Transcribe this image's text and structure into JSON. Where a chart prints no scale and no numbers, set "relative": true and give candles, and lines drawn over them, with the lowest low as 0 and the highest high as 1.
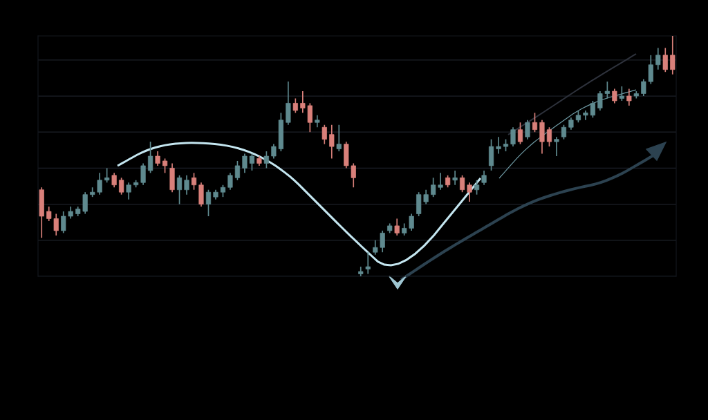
{
  "chart_data": {
    "type": "candlestick",
    "relative": true,
    "grid": "y",
    "categories": [
      null,
      null,
      null,
      null,
      null,
      null,
      null,
      null,
      null,
      null,
      null,
      null,
      null,
      null,
      null,
      null,
      null,
      null,
      null,
      null,
      null,
      null,
      null,
      null,
      null,
      null,
      null,
      null,
      null,
      null,
      null,
      null,
      null,
      null,
      null,
      null,
      null,
      null,
      null,
      null,
      null,
      null,
      null,
      null,
      null,
      null,
      null,
      null,
      null,
      null,
      null,
      null,
      null,
      null,
      null,
      null,
      null,
      null,
      null,
      null,
      null,
      null,
      null,
      null,
      null,
      null,
      null,
      null,
      null,
      null,
      null,
      null,
      null,
      null,
      null,
      null,
      null,
      null,
      null,
      null,
      null,
      null,
      null,
      null,
      null,
      null,
      null,
      null
    ],
    "ohlc": [
      [
        0.36,
        0.37,
        0.16,
        0.25
      ],
      [
        0.27,
        0.29,
        0.23,
        0.24
      ],
      [
        0.24,
        0.26,
        0.17,
        0.19
      ],
      [
        0.19,
        0.27,
        0.18,
        0.25
      ],
      [
        0.25,
        0.29,
        0.24,
        0.27
      ],
      [
        0.26,
        0.29,
        0.25,
        0.28
      ],
      [
        0.27,
        0.35,
        0.26,
        0.34
      ],
      [
        0.34,
        0.37,
        0.33,
        0.35
      ],
      [
        0.35,
        0.43,
        0.34,
        0.4
      ],
      [
        0.4,
        0.45,
        0.39,
        0.41
      ],
      [
        0.42,
        0.43,
        0.37,
        0.38
      ],
      [
        0.4,
        0.41,
        0.34,
        0.35
      ],
      [
        0.35,
        0.39,
        0.32,
        0.38
      ],
      [
        0.38,
        0.4,
        0.37,
        0.39
      ],
      [
        0.39,
        0.47,
        0.38,
        0.46
      ],
      [
        0.44,
        0.56,
        0.43,
        0.5
      ],
      [
        0.5,
        0.52,
        0.46,
        0.47
      ],
      [
        0.48,
        0.49,
        0.43,
        0.46
      ],
      [
        0.45,
        0.47,
        0.35,
        0.36
      ],
      [
        0.36,
        0.42,
        0.3,
        0.41
      ],
      [
        0.36,
        0.42,
        0.34,
        0.4
      ],
      [
        0.41,
        0.43,
        0.36,
        0.38
      ],
      [
        0.38,
        0.39,
        0.29,
        0.3
      ],
      [
        0.3,
        0.36,
        0.25,
        0.35
      ],
      [
        0.33,
        0.36,
        0.32,
        0.35
      ],
      [
        0.35,
        0.38,
        0.33,
        0.37
      ],
      [
        0.37,
        0.43,
        0.36,
        0.42
      ],
      [
        0.41,
        0.48,
        0.4,
        0.46
      ],
      [
        0.45,
        0.51,
        0.43,
        0.5
      ],
      [
        0.47,
        0.51,
        0.44,
        0.5
      ],
      [
        0.49,
        0.5,
        0.46,
        0.47
      ],
      [
        0.47,
        0.52,
        0.45,
        0.5
      ],
      [
        0.5,
        0.55,
        0.49,
        0.54
      ],
      [
        0.53,
        0.68,
        0.52,
        0.65
      ],
      [
        0.64,
        0.81,
        0.63,
        0.72
      ],
      [
        0.72,
        0.74,
        0.68,
        0.69
      ],
      [
        0.72,
        0.77,
        0.68,
        0.7
      ],
      [
        0.71,
        0.72,
        0.6,
        0.64
      ],
      [
        0.64,
        0.67,
        0.62,
        0.65
      ],
      [
        0.62,
        0.63,
        0.55,
        0.57
      ],
      [
        0.59,
        0.63,
        0.49,
        0.54
      ],
      [
        0.53,
        0.63,
        0.52,
        0.55
      ],
      [
        0.55,
        0.56,
        0.45,
        0.46
      ],
      [
        0.46,
        0.47,
        0.37,
        0.41
      ],
      [
        0.01,
        0.04,
        0,
        0.02
      ],
      [
        0.03,
        0.1,
        0.01,
        0.04
      ],
      [
        0.1,
        0.15,
        0.09,
        0.12
      ],
      [
        0.12,
        0.19,
        0.1,
        0.18
      ],
      [
        0.19,
        0.22,
        0.18,
        0.21
      ],
      [
        0.21,
        0.24,
        0.17,
        0.18
      ],
      [
        0.18,
        0.22,
        0.17,
        0.2
      ],
      [
        0.2,
        0.26,
        0.19,
        0.25
      ],
      [
        0.26,
        0.35,
        0.25,
        0.34
      ],
      [
        0.31,
        0.36,
        0.3,
        0.34
      ],
      [
        0.34,
        0.41,
        0.33,
        0.38
      ],
      [
        0.37,
        0.43,
        0.36,
        0.38
      ],
      [
        0.41,
        0.42,
        0.37,
        0.38
      ],
      [
        0.4,
        0.44,
        0.38,
        0.41
      ],
      [
        0.41,
        0.42,
        0.35,
        0.36
      ],
      [
        0.38,
        0.39,
        0.31,
        0.35
      ],
      [
        0.36,
        0.4,
        0.34,
        0.38
      ],
      [
        0.39,
        0.44,
        0.38,
        0.42
      ],
      [
        0.46,
        0.57,
        0.44,
        0.54
      ],
      [
        0.53,
        0.58,
        0.51,
        0.54
      ],
      [
        0.54,
        0.57,
        0.52,
        0.55
      ],
      [
        0.55,
        0.62,
        0.54,
        0.61
      ],
      [
        0.61,
        0.64,
        0.55,
        0.56
      ],
      [
        0.58,
        0.65,
        0.57,
        0.64
      ],
      [
        0.64,
        0.68,
        0.6,
        0.61
      ],
      [
        0.64,
        0.65,
        0.51,
        0.56
      ],
      [
        0.61,
        0.62,
        0.54,
        0.56
      ],
      [
        0.56,
        0.58,
        0.5,
        0.57
      ],
      [
        0.58,
        0.63,
        0.57,
        0.62
      ],
      [
        0.62,
        0.66,
        0.61,
        0.65
      ],
      [
        0.65,
        0.69,
        0.64,
        0.67
      ],
      [
        0.67,
        0.69,
        0.65,
        0.68
      ],
      [
        0.67,
        0.73,
        0.66,
        0.72
      ],
      [
        0.7,
        0.77,
        0.69,
        0.76
      ],
      [
        0.76,
        0.81,
        0.74,
        0.77
      ],
      [
        0.77,
        0.78,
        0.72,
        0.73
      ],
      [
        0.74,
        0.79,
        0.73,
        0.75
      ],
      [
        0.75,
        0.78,
        0.71,
        0.73
      ],
      [
        0.75,
        0.77,
        0.74,
        0.76
      ],
      [
        0.76,
        0.82,
        0.75,
        0.81
      ],
      [
        0.81,
        0.92,
        0.8,
        0.88
      ],
      [
        0.88,
        0.95,
        0.86,
        0.92
      ],
      [
        0.92,
        0.95,
        0.85,
        0.86
      ],
      [
        0.92,
        1,
        0.84,
        0.86
      ]
    ],
    "colors": [
      "#d9807a",
      "#d9807a",
      "#d9807a",
      "#5f8a8f",
      "#5f8a8f",
      "#5f8a8f",
      "#5f8a8f",
      "#5f8a8f",
      "#5f8a8f",
      "#5f8a8f",
      "#d9807a",
      "#d9807a",
      "#5f8a8f",
      "#5f8a8f",
      "#5f8a8f",
      "#5f8a8f",
      "#d9807a",
      "#d9807a",
      "#d9807a",
      "#5f8a8f",
      "#5f8a8f",
      "#d9807a",
      "#d9807a",
      "#5f8a8f",
      "#5f8a8f",
      "#5f8a8f",
      "#5f8a8f",
      "#5f8a8f",
      "#5f8a8f",
      "#5f8a8f",
      "#d9807a",
      "#5f8a8f",
      "#5f8a8f",
      "#5f8a8f",
      "#5f8a8f",
      "#d9807a",
      "#d9807a",
      "#d9807a",
      "#5f8a8f",
      "#d9807a",
      "#d9807a",
      "#5f8a8f",
      "#d9807a",
      "#d9807a",
      "#5f8a8f",
      "#5f8a8f",
      "#5f8a8f",
      "#5f8a8f",
      "#5f8a8f",
      "#d9807a",
      "#5f8a8f",
      "#5f8a8f",
      "#5f8a8f",
      "#5f8a8f",
      "#5f8a8f",
      "#5f8a8f",
      "#d9807a",
      "#5f8a8f",
      "#d9807a",
      "#d9807a",
      "#5f8a8f",
      "#5f8a8f",
      "#5f8a8f",
      "#5f8a8f",
      "#5f8a8f",
      "#5f8a8f",
      "#d9807a",
      "#5f8a8f",
      "#d9807a",
      "#d9807a",
      "#d9807a",
      "#5f8a8f",
      "#5f8a8f",
      "#5f8a8f",
      "#5f8a8f",
      "#5f8a8f",
      "#5f8a8f",
      "#5f8a8f",
      "#5f8a8f",
      "#d9807a",
      "#5f8a8f",
      "#d9807a",
      "#5f8a8f",
      "#5f8a8f",
      "#5f8a8f",
      "#5f8a8f",
      "#d9807a",
      "#d9807a"
    ]
  }
}
